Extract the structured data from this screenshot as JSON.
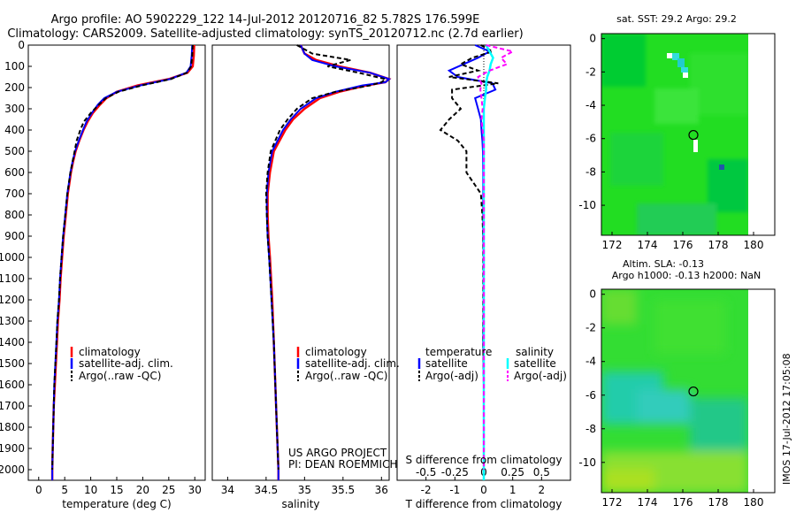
{
  "titles": {
    "line1": "Argo profile: AO 5902229_122 14-Jul-2012 20120716_82 5.782S 176.599E",
    "line2": "Climatology: CARS2009. Satellite-adjusted climatology: synTS_20120712.nc (2.7d earlier)"
  },
  "colors": {
    "climatology": "#ff0000",
    "satellite": "#0000ff",
    "argo": "#000000",
    "sal_satellite": "#00ffff",
    "sal_argo": "#ff00ff"
  },
  "chart_data": [
    {
      "type": "line",
      "id": "temperature",
      "xlabel": "temperature (deg C)",
      "ylabel": "",
      "xlim": [
        -2,
        32
      ],
      "ylim": [
        2050,
        0
      ],
      "xticks": [
        "0",
        "5",
        "10",
        "15",
        "20",
        "25",
        "30"
      ],
      "xtick_values": [
        0,
        5,
        10,
        15,
        20,
        25,
        30
      ],
      "yticks": [
        "0",
        "100",
        "200",
        "300",
        "400",
        "500",
        "600",
        "700",
        "800",
        "900",
        "1000",
        "1100",
        "1200",
        "1300",
        "1400",
        "1500",
        "1600",
        "1700",
        "1800",
        "1900",
        "2000"
      ],
      "ytick_values": [
        0,
        100,
        200,
        300,
        400,
        500,
        600,
        700,
        800,
        900,
        1000,
        1100,
        1200,
        1300,
        1400,
        1500,
        1600,
        1700,
        1800,
        1900,
        2000
      ],
      "depth": [
        0,
        50,
        100,
        130,
        160,
        190,
        220,
        250,
        280,
        320,
        360,
        400,
        450,
        500,
        550,
        600,
        650,
        700,
        800,
        900,
        1000,
        1100,
        1200,
        1300,
        1400,
        1500,
        1600,
        1700,
        1800,
        1900,
        2000,
        2050
      ],
      "series": [
        {
          "name": "climatology",
          "values": [
            29.9,
            29.8,
            29.6,
            28.6,
            25,
            19,
            15,
            13,
            11.8,
            10.4,
            9.4,
            8.6,
            7.8,
            7.1,
            6.6,
            6.2,
            5.9,
            5.6,
            5.2,
            4.8,
            4.5,
            4.2,
            4.0,
            3.7,
            3.5,
            3.3,
            3.1,
            2.9,
            2.8,
            2.7,
            2.6,
            2.6
          ]
        },
        {
          "name": "satellite-adj. clim.",
          "values": [
            29.5,
            29.4,
            29.2,
            28.4,
            25.2,
            19.5,
            15,
            12.6,
            11.4,
            10.2,
            9.2,
            8.5,
            7.7,
            7.0,
            6.5,
            6.1,
            5.8,
            5.5,
            5.1,
            4.7,
            4.4,
            4.1,
            3.9,
            3.6,
            3.4,
            3.2,
            3.0,
            2.9,
            2.8,
            2.7,
            2.6,
            2.6
          ]
        },
        {
          "name": "Argo(..raw -QC)",
          "values": [
            29.6,
            29.5,
            29.3,
            28.5,
            25.4,
            19.8,
            15.3,
            12.9,
            11.6,
            10.0,
            8.7,
            8.0,
            7.3,
            6.9,
            6.5,
            6.1,
            5.8,
            5.5,
            5.1,
            4.7,
            4.4,
            4.1,
            3.9,
            3.6,
            3.4,
            3.2,
            3.0,
            2.9,
            2.8,
            2.7,
            2.6,
            null
          ]
        }
      ],
      "legend": [
        "climatology",
        "satellite-adj. clim.",
        "Argo(..raw -QC)"
      ],
      "legend_location": "lower-center"
    },
    {
      "type": "line",
      "id": "salinity",
      "xlabel": "salinity",
      "xlim": [
        33.8,
        36.1
      ],
      "ylim": [
        2050,
        0
      ],
      "xticks": [
        "34",
        "34.5",
        "35",
        "35.5",
        "36"
      ],
      "xtick_values": [
        34,
        34.5,
        35,
        35.5,
        36
      ],
      "depth": [
        0,
        40,
        70,
        100,
        130,
        160,
        175,
        190,
        220,
        250,
        300,
        350,
        400,
        500,
        600,
        700,
        800,
        900,
        1000,
        1200,
        1400,
        1600,
        1800,
        2000,
        2050
      ],
      "series": [
        {
          "name": "climatology",
          "values": [
            34.95,
            35.0,
            35.15,
            35.45,
            35.85,
            36.1,
            36.05,
            35.8,
            35.45,
            35.2,
            35.0,
            34.85,
            34.75,
            34.6,
            34.55,
            34.52,
            34.52,
            34.53,
            34.55,
            34.58,
            34.6,
            34.62,
            34.64,
            34.66,
            34.66
          ]
        },
        {
          "name": "satellite-adj. clim.",
          "values": [
            34.95,
            35.0,
            35.1,
            35.4,
            35.85,
            36.1,
            36.05,
            35.75,
            35.4,
            35.15,
            34.95,
            34.82,
            34.72,
            34.58,
            34.53,
            34.51,
            34.51,
            34.52,
            34.54,
            34.57,
            34.6,
            34.62,
            34.64,
            34.66,
            34.66
          ]
        },
        {
          "name": "Argo(..raw -QC)",
          "values": [
            34.9,
            35.1,
            35.6,
            35.3,
            35.7,
            36.05,
            36.0,
            35.85,
            35.4,
            35.1,
            34.9,
            34.78,
            34.68,
            34.56,
            34.52,
            34.5,
            34.51,
            34.52,
            34.54,
            34.57,
            34.6,
            34.62,
            34.64,
            34.66,
            null
          ]
        }
      ],
      "legend": [
        "climatology",
        "satellite-adj. clim.",
        "Argo(..raw -QC)"
      ],
      "legend_location": "lower-center",
      "annotation": [
        "US ARGO PROJECT",
        "PI: DEAN ROEMMICH"
      ]
    },
    {
      "type": "line",
      "id": "difference",
      "xlabel": "T difference from climatology",
      "xlabel_top": "S difference from climatology",
      "xlim": [
        -3,
        3
      ],
      "ylim": [
        2050,
        0
      ],
      "xticks": [
        "-2",
        "-1",
        "0",
        "1",
        "2"
      ],
      "xtick_values": [
        -2,
        -1,
        0,
        1,
        2
      ],
      "top_ticks": [
        "-0.5",
        "-0.25",
        "0",
        "0.25",
        "0.5"
      ],
      "top_tick_values": [
        -0.5,
        -0.25,
        0,
        0.25,
        0.5
      ],
      "s_scale": 0.25,
      "depth": [
        0,
        30,
        60,
        90,
        120,
        150,
        180,
        210,
        250,
        300,
        350,
        400,
        450,
        500,
        600,
        700,
        800,
        900,
        1000,
        1200,
        1400,
        1600,
        1800,
        2000,
        2050
      ],
      "series": [
        {
          "name": "temperature satellite",
          "kind": "T",
          "values": [
            -0.3,
            0.2,
            -0.2,
            -0.7,
            -1.2,
            -0.9,
            0.3,
            0.4,
            -0.3,
            -0.2,
            -0.1,
            -0.08,
            -0.05,
            -0.03,
            -0.02,
            -0.02,
            -0.02,
            -0.02,
            -0.01,
            -0.01,
            -0.02,
            0,
            0,
            0,
            0
          ]
        },
        {
          "name": "temperature Argo(-adj)",
          "kind": "T",
          "values": [
            -0.1,
            0.3,
            -0.4,
            -0.8,
            -0.2,
            -1.2,
            0.5,
            -1.1,
            -1.1,
            -0.8,
            -1.2,
            -1.5,
            -0.9,
            -0.6,
            -0.6,
            -0.1,
            -0.05,
            -0.02,
            -0.02,
            -0.02,
            -0.02,
            0,
            0,
            0,
            null
          ]
        },
        {
          "name": "salinity satellite",
          "kind": "S",
          "values": [
            0.02,
            0.05,
            0.08,
            0.06,
            0.05,
            0.03,
            0.02,
            0.02,
            0.01,
            0.0,
            0.0,
            0.0,
            0.0,
            0.0,
            0.0,
            0.0,
            0.0,
            0.0,
            0.0,
            0.0,
            0.0,
            0.0,
            0.0,
            0.0,
            0.0
          ]
        },
        {
          "name": "salinity Argo(-adj)",
          "kind": "S",
          "values": [
            0.02,
            0.25,
            0.15,
            0.2,
            0.05,
            -0.05,
            -0.02,
            -0.03,
            -0.02,
            -0.01,
            -0.02,
            -0.01,
            0.0,
            0.0,
            0.0,
            0.0,
            0.0,
            0.0,
            0.0,
            0.0,
            0.0,
            0.0,
            0.0,
            0.0,
            null
          ]
        }
      ],
      "legend_t_header": "temperature",
      "legend_s_header": "salinity",
      "legend_t": [
        "satellite",
        "Argo(-adj)"
      ],
      "legend_s": [
        "satellite",
        "Argo(-adj)"
      ]
    },
    {
      "type": "heatmap",
      "id": "sst_map",
      "title": "sat. SST: 29.2  Argo: 29.2",
      "xticks": [
        "172",
        "174",
        "176",
        "178",
        "180"
      ],
      "xtick_values": [
        172,
        174,
        176,
        178,
        180
      ],
      "yticks": [
        "0",
        "-2",
        "-4",
        "-6",
        "-8",
        "-10"
      ],
      "ytick_values": [
        0,
        -2,
        -4,
        -6,
        -8,
        -10
      ],
      "xlim": [
        171.4,
        181.2
      ],
      "ylim": [
        -11.8,
        0.3
      ],
      "marker": [
        176.6,
        -5.78
      ]
    },
    {
      "type": "heatmap",
      "id": "sla_map",
      "title_line1": "Altim. SLA: -0.13",
      "title_line2": "Argo h1000: -0.13 h2000: NaN",
      "xticks": [
        "172",
        "174",
        "176",
        "178",
        "180"
      ],
      "xtick_values": [
        172,
        174,
        176,
        178,
        180
      ],
      "yticks": [
        "0",
        "-2",
        "-4",
        "-6",
        "-8",
        "-10"
      ],
      "ytick_values": [
        0,
        -2,
        -4,
        -6,
        -8,
        -10
      ],
      "xlim": [
        171.4,
        181.2
      ],
      "ylim": [
        -11.8,
        0.3
      ],
      "marker": [
        176.6,
        -5.78
      ]
    }
  ],
  "watermark": "IMOS 17-Jul-2012 17:05:08"
}
